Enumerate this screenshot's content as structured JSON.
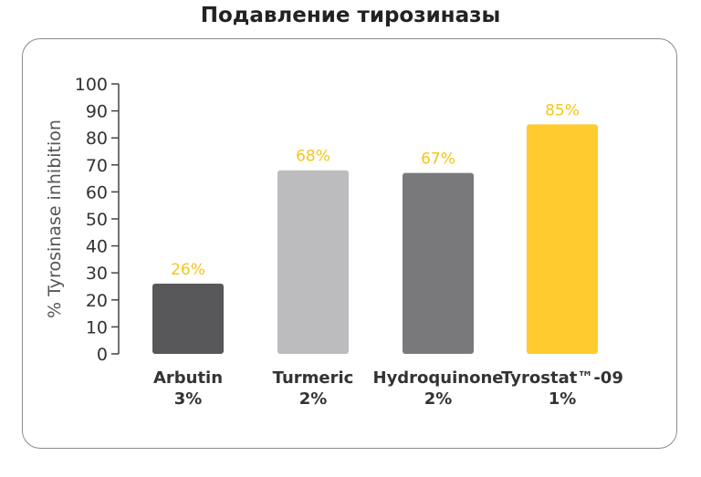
{
  "title": "Подавление тирозиназы",
  "chart_data": {
    "type": "bar",
    "title": "Подавление тирозиназы",
    "xlabel": "",
    "ylabel": "% Tyrosinase inhibition",
    "ylim": [
      0,
      100
    ],
    "yticks": [
      0,
      10,
      20,
      30,
      40,
      50,
      60,
      70,
      80,
      90,
      100
    ],
    "categories": [
      {
        "line1": "Arbutin",
        "line2": "3%"
      },
      {
        "line1": "Turmeric",
        "line2": "2%"
      },
      {
        "line1": "Hydroquinone",
        "line2": "2%"
      },
      {
        "line1": "Tyrostat™-09",
        "line2": "1%"
      }
    ],
    "values": [
      26,
      68,
      67,
      85
    ],
    "data_labels": [
      "26%",
      "68%",
      "67%",
      "85%"
    ],
    "colors": [
      "#58585a",
      "#bcbcbe",
      "#79797b",
      "#ffcb2f"
    ],
    "label_color": "#f5c518",
    "grid": false
  }
}
